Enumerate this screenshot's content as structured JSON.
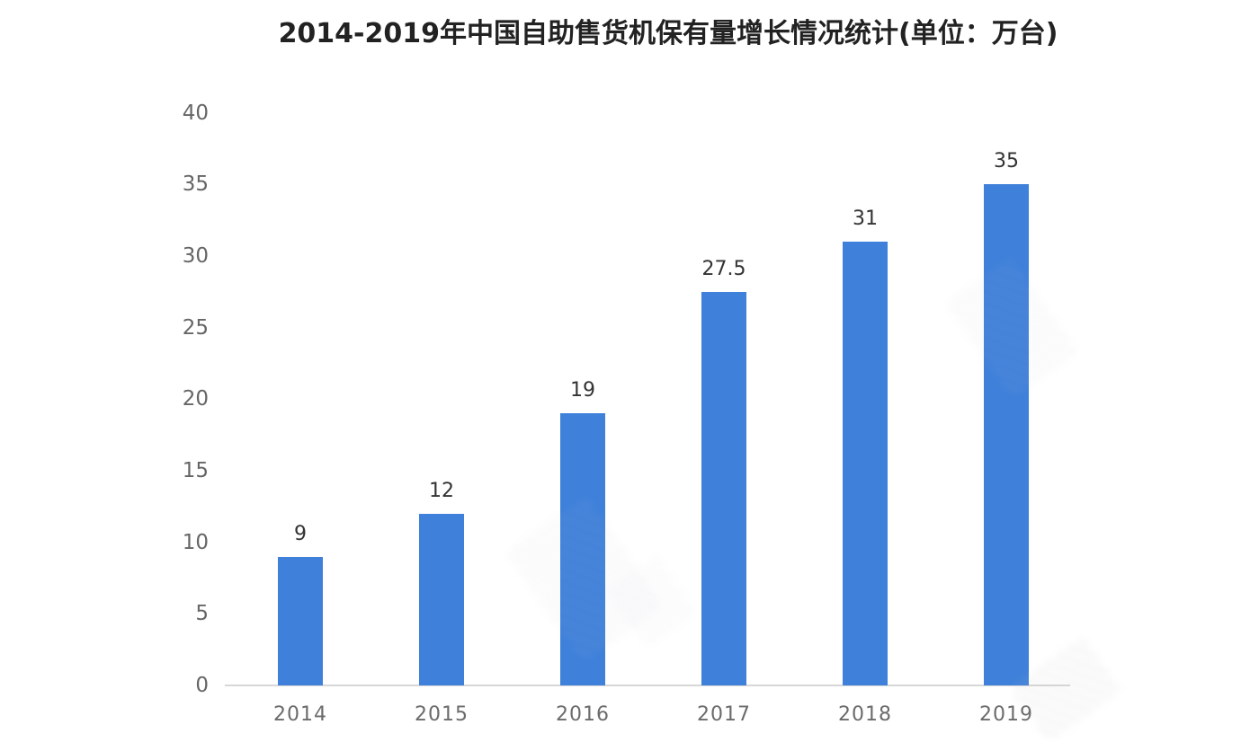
{
  "title": "2014-2019年中国自助售货机保有量增长情况统计(单位：万台)",
  "chart_data": {
    "type": "bar",
    "title": "2014-2019年中国自助售货机保有量增长情况统计(单位：万台)",
    "categories": [
      "2014",
      "2015",
      "2016",
      "2017",
      "2018",
      "2019"
    ],
    "values": [
      9,
      12,
      19,
      27.5,
      31,
      35
    ],
    "value_labels": [
      "9",
      "12",
      "19",
      "27.5",
      "31",
      "35"
    ],
    "xlabel": "",
    "ylabel": "",
    "unit": "万台",
    "ylim": [
      0,
      40
    ],
    "yticks": [
      0,
      5,
      10,
      15,
      20,
      25,
      30,
      35,
      40
    ],
    "grid": false,
    "legend": null,
    "bar_color": "#3e80da",
    "axis_line_color": "#d7d7d7",
    "tick_label_color": "#666666",
    "value_label_color": "#333333",
    "title_color": "#222222"
  }
}
